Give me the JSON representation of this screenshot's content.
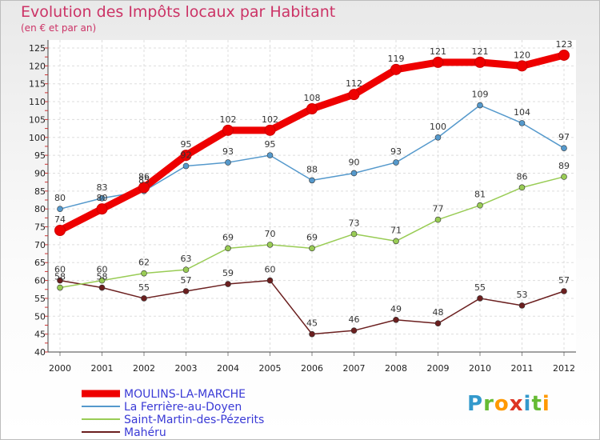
{
  "title": "Evolution des Impôts locaux par Habitant",
  "subtitle": "(en € et par an)",
  "logo": {
    "letters": [
      {
        "ch": "P",
        "color": "#3399cc"
      },
      {
        "ch": "r",
        "color": "#66bb33"
      },
      {
        "ch": "o",
        "color": "#ff9900"
      },
      {
        "ch": "x",
        "color": "#dd3322"
      },
      {
        "ch": "i",
        "color": "#3399cc"
      },
      {
        "ch": "t",
        "color": "#66bb33"
      },
      {
        "ch": "i",
        "color": "#ff9900"
      }
    ]
  },
  "chart_data": {
    "type": "line",
    "x": [
      "2000",
      "2001",
      "2002",
      "2003",
      "2004",
      "2005",
      "2006",
      "2007",
      "2008",
      "2009",
      "2010",
      "2011",
      "2012"
    ],
    "ylim": [
      40,
      125
    ],
    "yticks": [
      40,
      45,
      50,
      55,
      60,
      65,
      70,
      75,
      80,
      85,
      90,
      95,
      100,
      105,
      110,
      115,
      120,
      125
    ],
    "grid": true,
    "legend_position": "bottom-left",
    "series": [
      {
        "name": "MOULINS-LA-MARCHE",
        "color": "#ee0000",
        "values": [
          74,
          80,
          86,
          95,
          102,
          102,
          108,
          112,
          119,
          121,
          121,
          120,
          123
        ]
      },
      {
        "name": "La Ferrière-au-Doyen",
        "color": "#5599cc",
        "values": [
          80,
          83,
          85,
          92,
          93,
          95,
          88,
          90,
          93,
          100,
          109,
          104,
          97
        ]
      },
      {
        "name": "Saint-Martin-des-Pézerits",
        "color": "#99cc55",
        "values": [
          58,
          60,
          62,
          63,
          69,
          70,
          69,
          73,
          71,
          77,
          81,
          86,
          89
        ]
      },
      {
        "name": "Mahéru",
        "color": "#6b1f1f",
        "values": [
          60,
          58,
          55,
          57,
          59,
          60,
          45,
          46,
          49,
          48,
          55,
          53,
          57
        ]
      }
    ]
  }
}
